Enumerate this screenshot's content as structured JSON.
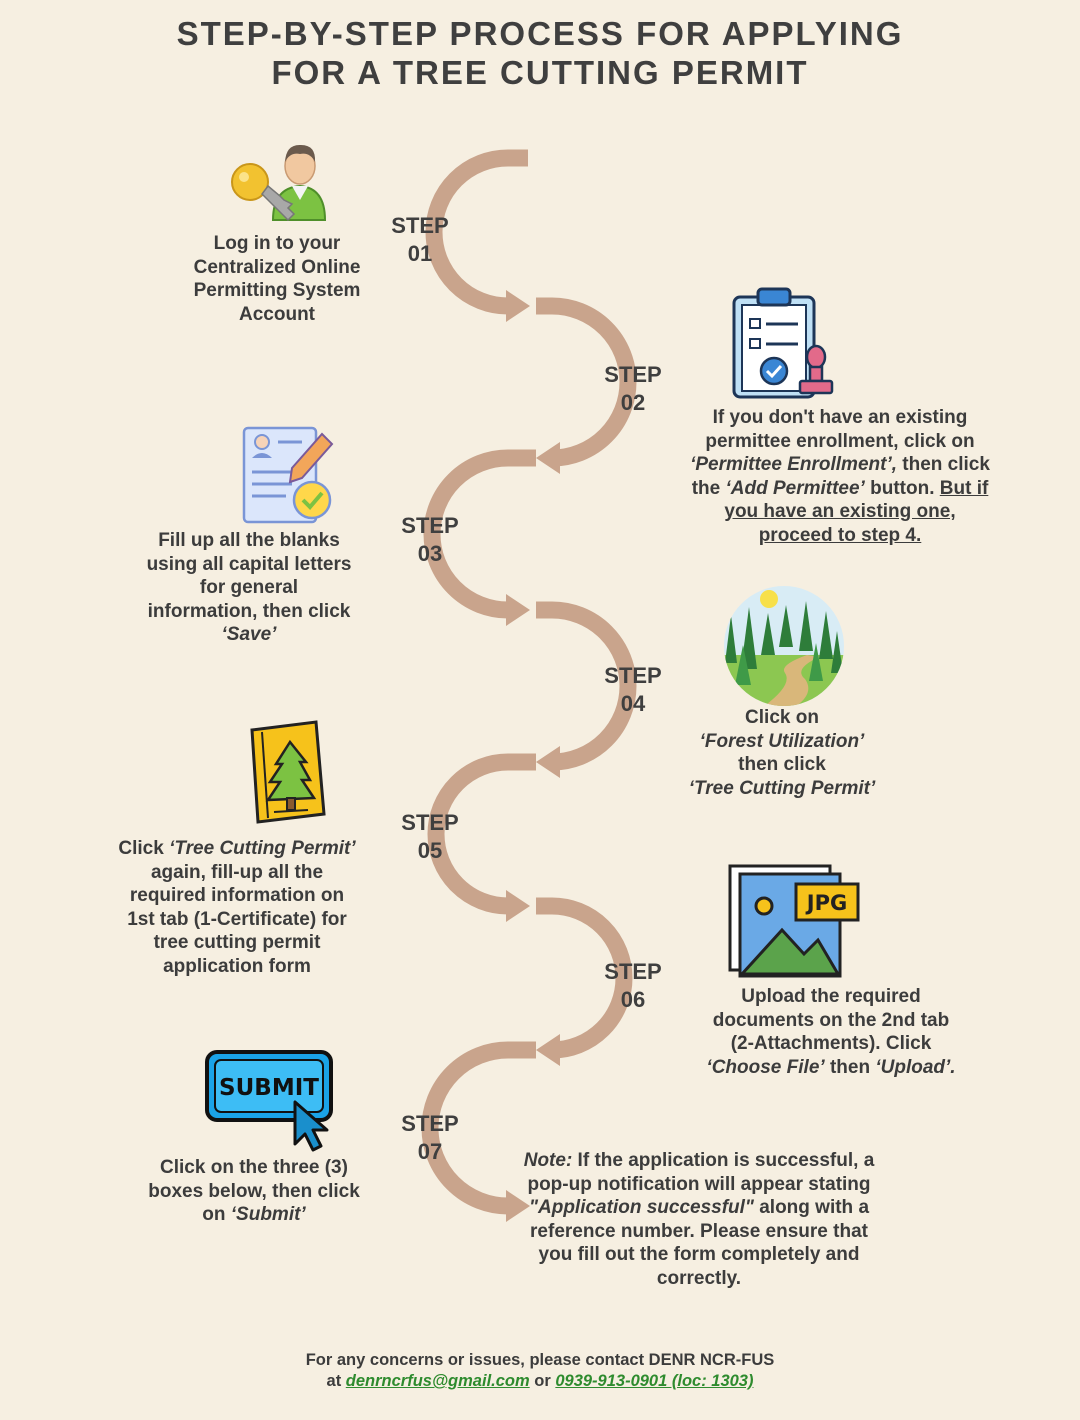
{
  "title": {
    "line1": "STEP-BY-STEP PROCESS FOR APPLYING",
    "line2": "FOR A TREE CUTTING PERMIT"
  },
  "colors": {
    "background": "#f6efe1",
    "path": "#c9a48c",
    "text": "#3c3c3c",
    "link": "#2e8b2e"
  },
  "steps": [
    {
      "word": "STEP",
      "num": "01",
      "icon": "user-key-icon",
      "text": "Log in to your Centralized Online Permitting System Account"
    },
    {
      "word": "STEP",
      "num": "02",
      "icon": "clipboard-stamp-icon",
      "t1": "If you don't have an existing permittee enrollment, click on ",
      "i1": "‘Permittee Enrollment’,",
      "t2": " then click the ",
      "i2": "‘Add Permittee’",
      "t3": " button. ",
      "u1": "But if you have an existing one, proceed to step 4."
    },
    {
      "word": "STEP",
      "num": "03",
      "icon": "form-edit-icon",
      "t1": "Fill up all the blanks using all capital letters for general information, then click ",
      "i1": "‘Save’"
    },
    {
      "word": "STEP",
      "num": "04",
      "icon": "forest-icon",
      "t1": "Click on",
      "i1": "‘Forest Utilization’",
      "t2": "then click",
      "i2": "‘Tree Cutting Permit’"
    },
    {
      "word": "STEP",
      "num": "05",
      "icon": "tree-card-icon",
      "t1": "Click ",
      "i1": "‘Tree Cutting Permit’",
      "t2": " again, fill-up all the required information on 1st tab (1-Certificate) for tree cutting permit application form"
    },
    {
      "word": "STEP",
      "num": "06",
      "icon": "jpg-image-icon",
      "jpg_label": "JPG",
      "t1": "Upload the required documents on the 2nd tab (2-Attachments). Click ",
      "i1": "‘Choose File’",
      "t2": " then ",
      "i2": "‘Upload’."
    },
    {
      "word": "STEP",
      "num": "07",
      "icon": "submit-button-icon",
      "submit_label": "SUBMIT",
      "t1": "Click on the three (3) boxes below, then click on ",
      "i1": "‘Submit’"
    }
  ],
  "note": {
    "lead": "Note:",
    "t1": " If the application is successful, a pop-up notification will appear stating ",
    "i1": "\"Application successful\"",
    "t2": " along with a reference number. Please ensure that you fill out the form completely and correctly."
  },
  "footer": {
    "line1": "For any concerns or issues, please contact DENR NCR-FUS",
    "at": "at ",
    "email": "denrncrfus@gmail.com",
    "or": " or ",
    "phone": "0939-913-0901 (loc: 1303)"
  }
}
